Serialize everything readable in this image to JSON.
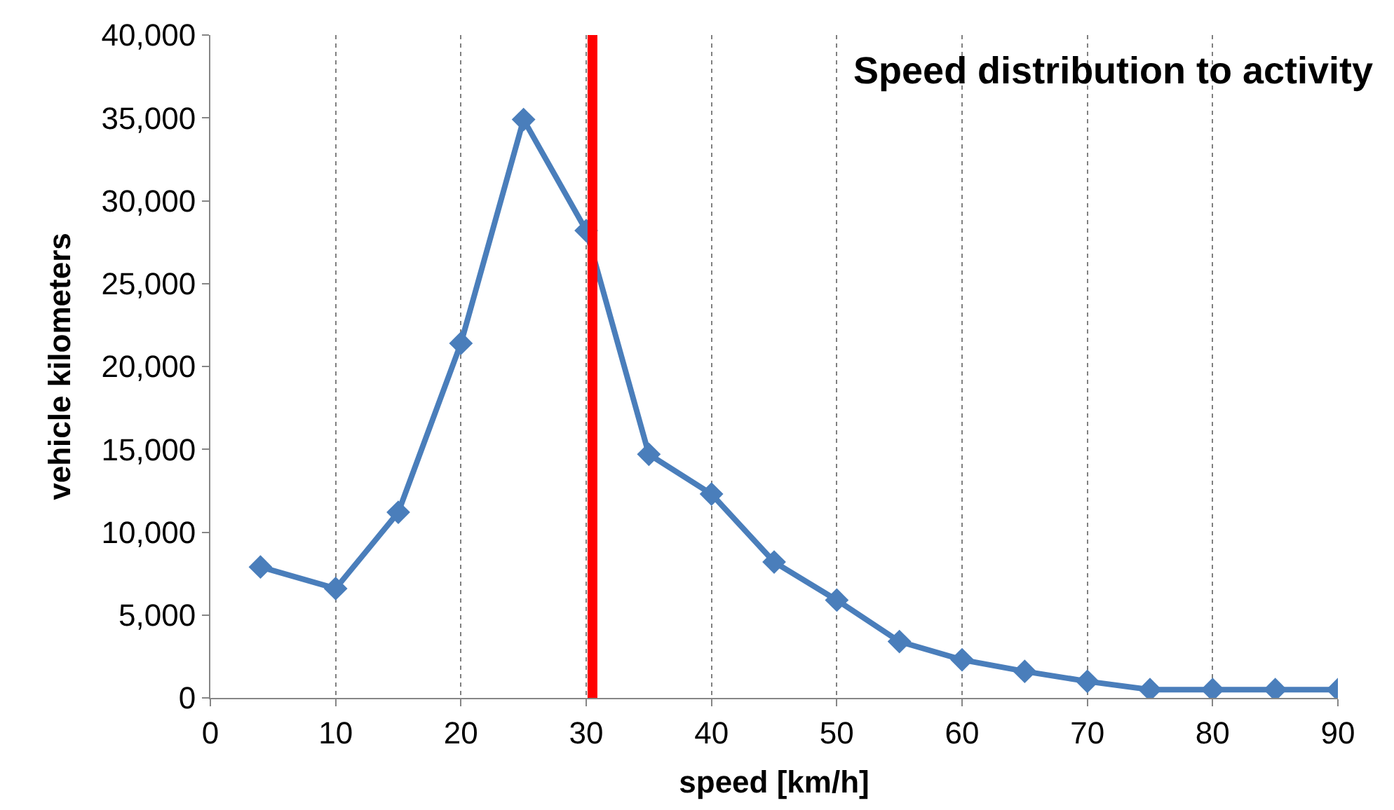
{
  "chart_data": {
    "type": "line",
    "title": "Speed distribution to activity",
    "xlabel": "speed [km/h]",
    "ylabel": "vehicle kilometers",
    "x": [
      4,
      10,
      15,
      20,
      25,
      30,
      35,
      40,
      45,
      50,
      55,
      60,
      65,
      70,
      75,
      80,
      85,
      90
    ],
    "series": [
      {
        "color": "#4a7ebb",
        "values": [
          7900,
          6600,
          11200,
          21400,
          34900,
          28200,
          14700,
          12300,
          8200,
          5900,
          3400,
          2300,
          1600,
          1000,
          500,
          500,
          500,
          500
        ]
      }
    ],
    "xlim": [
      0,
      90
    ],
    "xticks": [
      0,
      10,
      20,
      30,
      40,
      50,
      60,
      70,
      80,
      90
    ],
    "ylim": [
      0,
      40000
    ],
    "yticks": [
      {
        "value": 0,
        "label": "0"
      },
      {
        "value": 5000,
        "label": "5,000"
      },
      {
        "value": 10000,
        "label": "10,000"
      },
      {
        "value": 15000,
        "label": "15,000"
      },
      {
        "value": 20000,
        "label": "20,000"
      },
      {
        "value": 25000,
        "label": "25,000"
      },
      {
        "value": 30000,
        "label": "30,000"
      },
      {
        "value": 35000,
        "label": "35,000"
      },
      {
        "value": 40000,
        "label": "40,000"
      }
    ],
    "ref_lines": [
      {
        "axis": "x",
        "value": 30.5,
        "color": "#ff0000"
      }
    ],
    "grid": "x",
    "marker": "diamond",
    "line_style": "solid"
  }
}
